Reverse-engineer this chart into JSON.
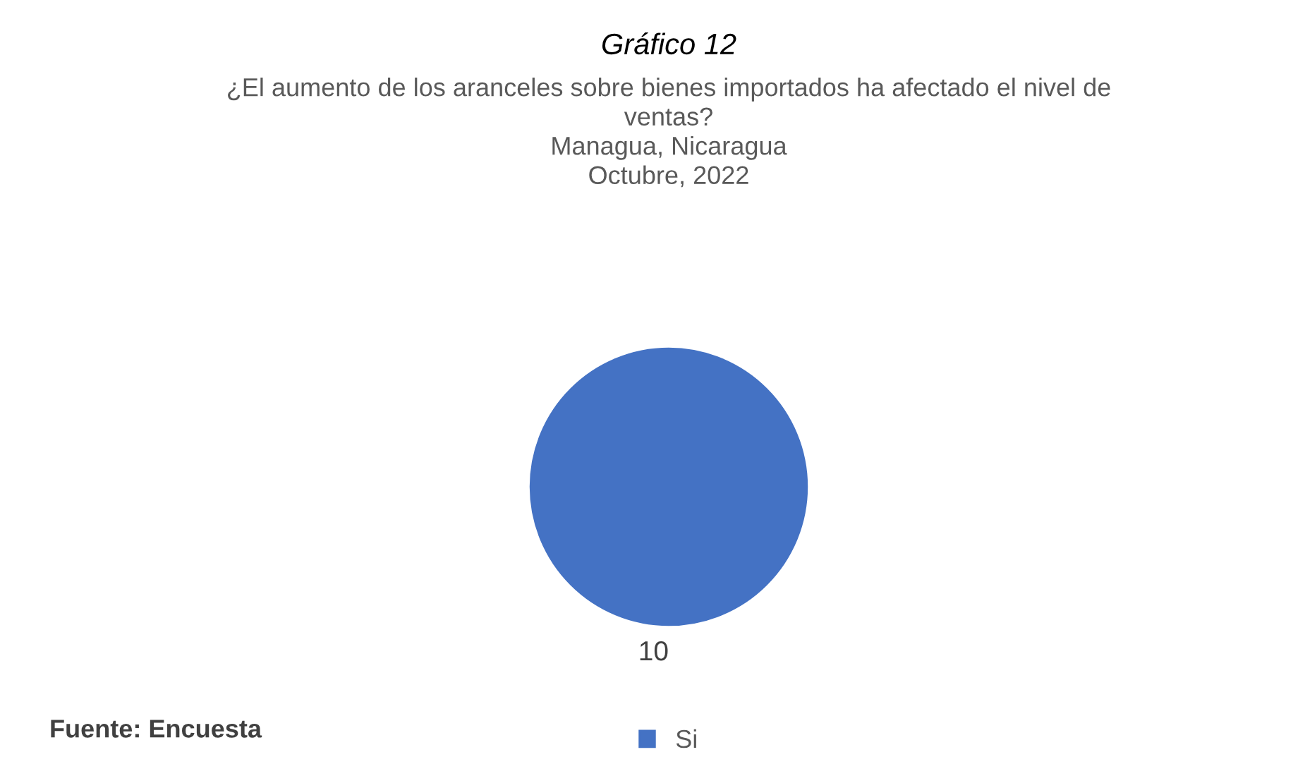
{
  "chart_data": {
    "type": "pie",
    "title": "Gráfico 12",
    "subtitle": "¿El aumento de los aranceles sobre bienes importados ha afectado el nivel de\nventas?\nManagua, Nicaragua\nOctubre, 2022",
    "categories": [
      "Si"
    ],
    "values": [
      10
    ],
    "colors": [
      "#4472c4"
    ],
    "data_labels": true,
    "legend": "bottom",
    "annotations": [
      "Fuente: Encuesta"
    ]
  }
}
